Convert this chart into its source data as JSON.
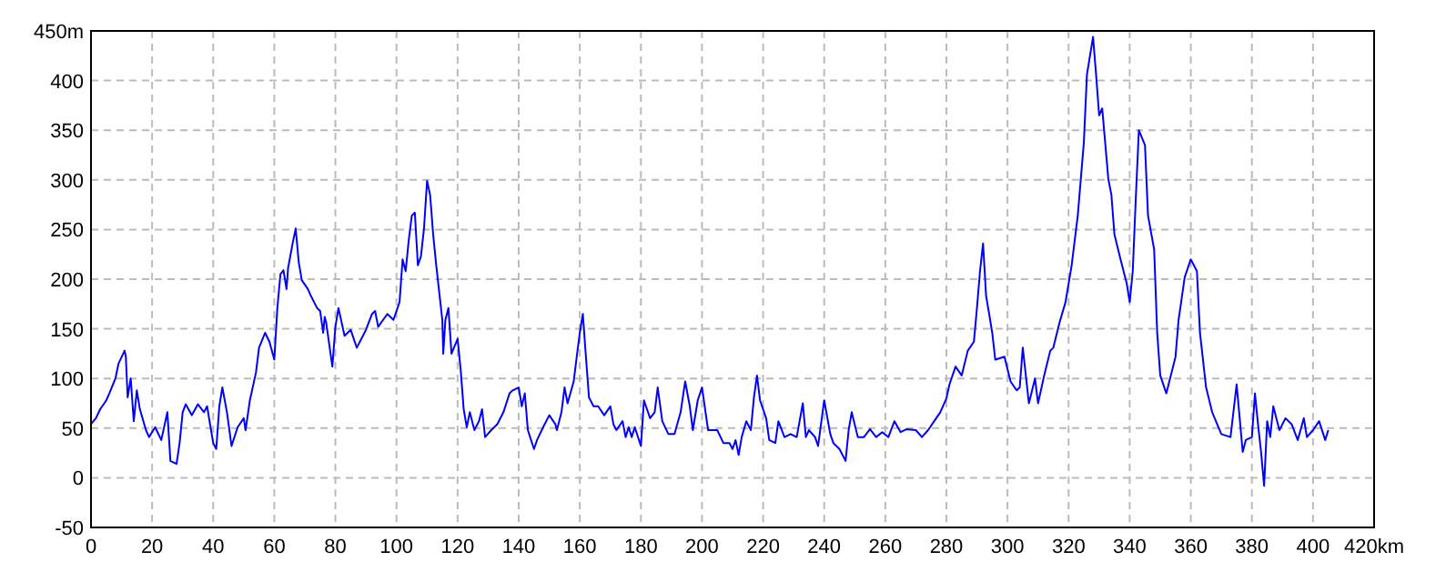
{
  "chart_data": {
    "type": "line",
    "grid": true,
    "xlim": [
      0,
      420
    ],
    "ylim": [
      -50,
      450
    ],
    "xticks": [
      0,
      20,
      40,
      60,
      80,
      100,
      120,
      140,
      160,
      180,
      200,
      220,
      240,
      260,
      280,
      300,
      320,
      340,
      360,
      380,
      400,
      {
        "value": 420,
        "label": "420km"
      }
    ],
    "yticks": [
      -50,
      0,
      50,
      100,
      150,
      200,
      250,
      300,
      350,
      400,
      {
        "value": 450,
        "label": "450m"
      }
    ],
    "series": [
      {
        "color": "#0000ff",
        "x": [
          0,
          1.6,
          3,
          5,
          6,
          8,
          9,
          11,
          11.4,
          12,
          13,
          14,
          15,
          16,
          18,
          19,
          21,
          23,
          25,
          25.5,
          26,
          28,
          29,
          30,
          31,
          33,
          35,
          37,
          38,
          40,
          41,
          42,
          43,
          44.5,
          46,
          48,
          50,
          50.6,
          52,
          54,
          55,
          57,
          58.4,
          60,
          61,
          62,
          63,
          64,
          64.5,
          66,
          67,
          68,
          69,
          71,
          72,
          74,
          75,
          76,
          76.5,
          77,
          79,
          80,
          81,
          83,
          85,
          87,
          90,
          92,
          93,
          94,
          97,
          99,
          101,
          102,
          103,
          104,
          105,
          106,
          107,
          108,
          109,
          110,
          111,
          112,
          113,
          115,
          115.3,
          116,
          117,
          118,
          120,
          121,
          122,
          123,
          124,
          125.5,
          127,
          128,
          129,
          131,
          133,
          135,
          137,
          138,
          140,
          141,
          142,
          143,
          145,
          146,
          148,
          150,
          152,
          152.5,
          154,
          155,
          156,
          158,
          159,
          160,
          161,
          162,
          163,
          164.5,
          166,
          168,
          170,
          171,
          172,
          174,
          175,
          176,
          177,
          178,
          180,
          181,
          183,
          184.5,
          185.5,
          187,
          189,
          191,
          193,
          194.5,
          196,
          197,
          198.6,
          200,
          202,
          204,
          205,
          207,
          209,
          210,
          211,
          212,
          213,
          214.5,
          216,
          217,
          218,
          219,
          221,
          222,
          224,
          225,
          227,
          229,
          231,
          233,
          234,
          235,
          237,
          238,
          240,
          242,
          243,
          245,
          247,
          248,
          249,
          251,
          253,
          255,
          257,
          259,
          261,
          263,
          265,
          267,
          270,
          272,
          274,
          276,
          278,
          280,
          281,
          283,
          285,
          287,
          289,
          290,
          291,
          292,
          293,
          294,
          295,
          296,
          299,
          301,
          303,
          304,
          305,
          307,
          309,
          310,
          312,
          314,
          315,
          317,
          319,
          321,
          323,
          325,
          326,
          328,
          329,
          330,
          331,
          333,
          334,
          335,
          337,
          339,
          340,
          341,
          342,
          343,
          345,
          346,
          348,
          349,
          350,
          352,
          355,
          356,
          358,
          360,
          362,
          363,
          365,
          367,
          370,
          373,
          375,
          376,
          377,
          378,
          380,
          381,
          382,
          383,
          384,
          385,
          386,
          387,
          389,
          391,
          393,
          395,
          397,
          398,
          400,
          402,
          404,
          405
        ],
        "values": [
          54,
          60,
          69,
          78,
          85,
          100,
          115,
          128,
          122,
          81,
          100,
          57,
          88,
          69,
          48,
          41,
          51,
          38,
          66,
          41,
          17,
          14,
          35,
          66,
          74,
          63,
          74,
          66,
          72,
          35,
          29,
          72,
          91,
          66,
          32,
          51,
          60,
          48,
          78,
          106,
          131,
          146,
          137,
          119,
          171,
          205,
          209,
          190,
          211,
          236,
          251,
          217,
          199,
          190,
          183,
          171,
          168,
          146,
          162,
          156,
          112,
          152,
          171,
          143,
          149,
          131,
          149,
          165,
          168,
          152,
          165,
          159,
          177,
          220,
          208,
          239,
          264,
          267,
          214,
          223,
          251,
          299,
          285,
          245,
          214,
          159,
          125,
          159,
          171,
          125,
          140,
          109,
          69,
          51,
          66,
          48,
          57,
          69,
          41,
          48,
          54,
          66,
          85,
          88,
          91,
          72,
          85,
          48,
          29,
          38,
          51,
          63,
          54,
          48,
          66,
          91,
          75,
          97,
          122,
          146,
          165,
          122,
          81,
          72,
          72,
          63,
          72,
          54,
          48,
          57,
          41,
          51,
          41,
          51,
          32,
          78,
          60,
          66,
          91,
          57,
          44,
          44,
          66,
          97,
          72,
          48,
          78,
          91,
          48,
          48,
          48,
          35,
          35,
          29,
          38,
          23,
          41,
          57,
          48,
          81,
          103,
          78,
          60,
          38,
          35,
          57,
          41,
          44,
          41,
          75,
          41,
          48,
          41,
          32,
          78,
          44,
          35,
          29,
          17,
          48,
          66,
          41,
          41,
          49,
          41,
          46,
          41,
          57,
          46,
          49,
          48,
          41,
          48,
          57,
          66,
          80,
          94,
          112,
          103,
          128,
          137,
          171,
          208,
          236,
          183,
          165,
          146,
          119,
          122,
          97,
          88,
          91,
          131,
          75,
          100,
          75,
          103,
          128,
          131,
          156,
          177,
          214,
          264,
          338,
          406,
          444,
          406,
          365,
          372,
          301,
          285,
          245,
          220,
          196,
          177,
          208,
          282,
          350,
          335,
          264,
          230,
          146,
          103,
          85,
          122,
          159,
          202,
          220,
          208,
          146,
          91,
          66,
          44,
          41,
          94,
          60,
          26,
          38,
          41,
          85,
          54,
          26,
          -8,
          57,
          41,
          72,
          48,
          60,
          54,
          38,
          60,
          41,
          48,
          57,
          38,
          48
        ]
      }
    ]
  }
}
